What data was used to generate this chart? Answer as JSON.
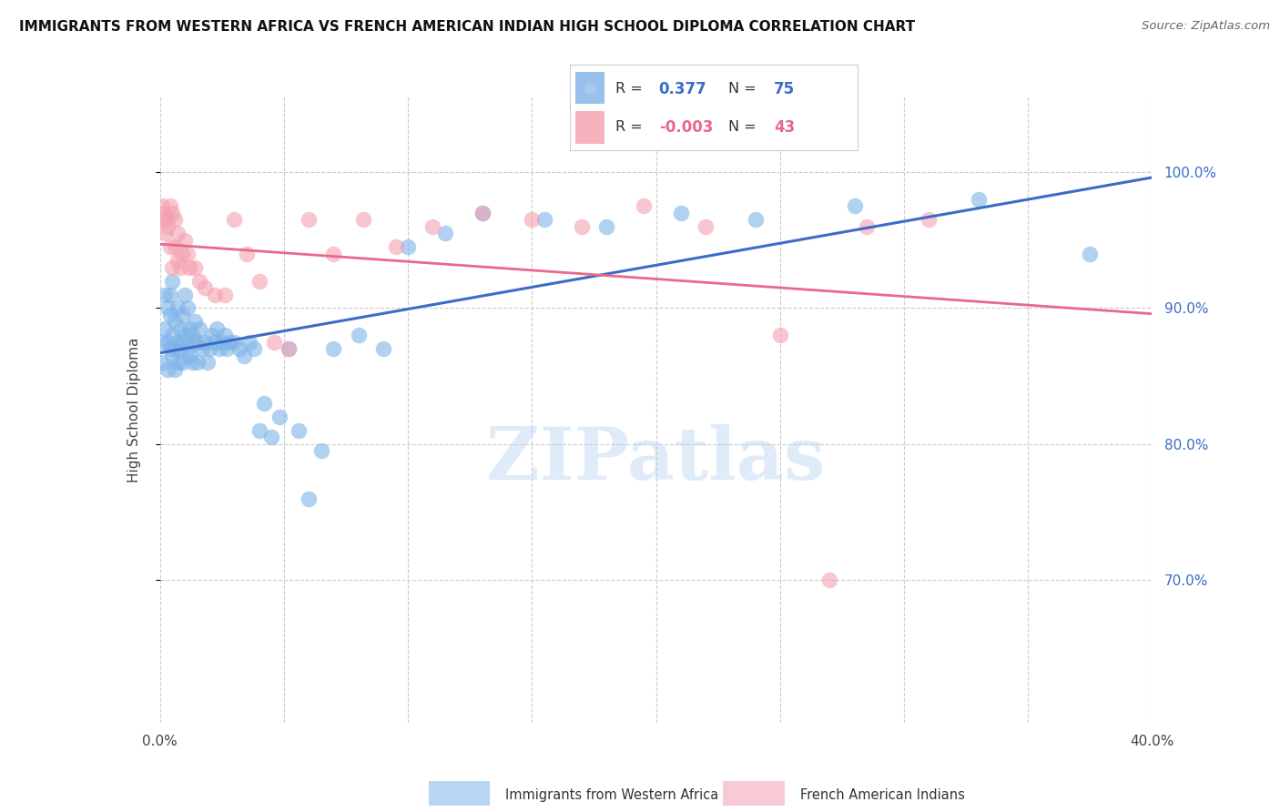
{
  "title": "IMMIGRANTS FROM WESTERN AFRICA VS FRENCH AMERICAN INDIAN HIGH SCHOOL DIPLOMA CORRELATION CHART",
  "source": "Source: ZipAtlas.com",
  "ylabel": "High School Diploma",
  "x_min": 0.0,
  "x_max": 0.4,
  "y_min": 0.595,
  "y_max": 1.055,
  "y_ticks_right": [
    1.0,
    0.9,
    0.8,
    0.7
  ],
  "y_tick_labels_right": [
    "100.0%",
    "90.0%",
    "80.0%",
    "70.0%"
  ],
  "legend_blue_r": "0.377",
  "legend_blue_n": "75",
  "legend_pink_r": "-0.003",
  "legend_pink_n": "43",
  "legend_blue_label": "Immigrants from Western Africa",
  "legend_pink_label": "French American Indians",
  "blue_color": "#7EB3E8",
  "pink_color": "#F4A0B0",
  "blue_line_color": "#3B6CC9",
  "pink_line_color": "#E8698A",
  "watermark": "ZIPatlas",
  "blue_scatter_x": [
    0.001,
    0.001,
    0.002,
    0.002,
    0.003,
    0.003,
    0.003,
    0.004,
    0.004,
    0.004,
    0.005,
    0.005,
    0.005,
    0.006,
    0.006,
    0.006,
    0.007,
    0.007,
    0.007,
    0.008,
    0.008,
    0.009,
    0.009,
    0.009,
    0.01,
    0.01,
    0.011,
    0.011,
    0.012,
    0.012,
    0.013,
    0.013,
    0.014,
    0.014,
    0.015,
    0.015,
    0.016,
    0.017,
    0.018,
    0.019,
    0.02,
    0.021,
    0.022,
    0.023,
    0.024,
    0.025,
    0.026,
    0.027,
    0.028,
    0.03,
    0.032,
    0.034,
    0.036,
    0.038,
    0.04,
    0.042,
    0.045,
    0.048,
    0.052,
    0.056,
    0.06,
    0.065,
    0.07,
    0.08,
    0.09,
    0.1,
    0.115,
    0.13,
    0.155,
    0.18,
    0.21,
    0.24,
    0.28,
    0.33,
    0.375
  ],
  "blue_scatter_y": [
    0.875,
    0.86,
    0.91,
    0.885,
    0.9,
    0.875,
    0.855,
    0.895,
    0.87,
    0.91,
    0.88,
    0.865,
    0.92,
    0.855,
    0.89,
    0.87,
    0.9,
    0.875,
    0.86,
    0.885,
    0.87,
    0.895,
    0.86,
    0.875,
    0.91,
    0.88,
    0.9,
    0.87,
    0.885,
    0.865,
    0.88,
    0.86,
    0.875,
    0.89,
    0.875,
    0.86,
    0.885,
    0.87,
    0.875,
    0.86,
    0.87,
    0.88,
    0.875,
    0.885,
    0.87,
    0.875,
    0.88,
    0.87,
    0.875,
    0.875,
    0.87,
    0.865,
    0.875,
    0.87,
    0.81,
    0.83,
    0.805,
    0.82,
    0.87,
    0.81,
    0.76,
    0.795,
    0.87,
    0.88,
    0.87,
    0.945,
    0.955,
    0.97,
    0.965,
    0.96,
    0.97,
    0.965,
    0.975,
    0.98,
    0.94
  ],
  "pink_scatter_x": [
    0.001,
    0.001,
    0.002,
    0.002,
    0.003,
    0.003,
    0.004,
    0.004,
    0.005,
    0.005,
    0.006,
    0.006,
    0.007,
    0.007,
    0.008,
    0.009,
    0.01,
    0.011,
    0.012,
    0.014,
    0.016,
    0.018,
    0.022,
    0.026,
    0.03,
    0.035,
    0.04,
    0.046,
    0.052,
    0.06,
    0.07,
    0.082,
    0.095,
    0.11,
    0.13,
    0.15,
    0.17,
    0.195,
    0.22,
    0.25,
    0.285,
    0.31,
    0.27
  ],
  "pink_scatter_y": [
    0.975,
    0.965,
    0.97,
    0.955,
    0.965,
    0.96,
    0.975,
    0.945,
    0.97,
    0.93,
    0.965,
    0.945,
    0.955,
    0.935,
    0.93,
    0.94,
    0.95,
    0.94,
    0.93,
    0.93,
    0.92,
    0.915,
    0.91,
    0.91,
    0.965,
    0.94,
    0.92,
    0.875,
    0.87,
    0.965,
    0.94,
    0.965,
    0.945,
    0.96,
    0.97,
    0.965,
    0.96,
    0.975,
    0.96,
    0.88,
    0.96,
    0.965,
    0.7
  ]
}
